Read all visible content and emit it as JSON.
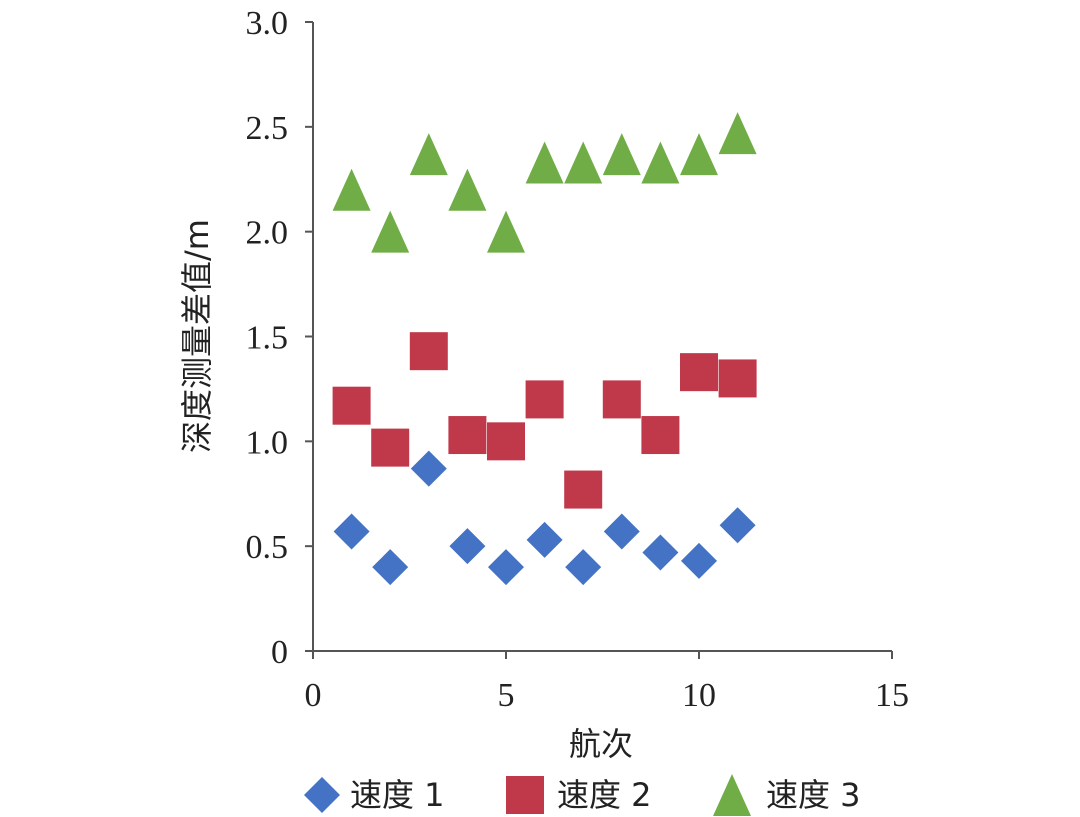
{
  "chart_data": {
    "type": "scatter",
    "title": "",
    "xlabel": "航次",
    "ylabel": "深度测量差值/m",
    "xlim": [
      0,
      15
    ],
    "ylim": [
      0,
      3.0
    ],
    "x_ticks": [
      "0",
      "5",
      "10",
      "15"
    ],
    "y_ticks": [
      "0",
      "0.5",
      "1.0",
      "1.5",
      "2.0",
      "2.5",
      "3.0"
    ],
    "grid": false,
    "legend_position": "bottom",
    "x": [
      1,
      2,
      3,
      4,
      5,
      6,
      7,
      8,
      9,
      10,
      11
    ],
    "series": [
      {
        "name": "速度 1",
        "marker": "diamond",
        "color": "#4472C4",
        "values": [
          0.57,
          0.4,
          0.87,
          0.5,
          0.4,
          0.53,
          0.4,
          0.57,
          0.47,
          0.43,
          0.6
        ]
      },
      {
        "name": "速度 2",
        "marker": "square",
        "color": "#C0394B",
        "values": [
          1.17,
          0.97,
          1.43,
          1.03,
          1.0,
          1.2,
          0.77,
          1.2,
          1.03,
          1.33,
          1.3
        ]
      },
      {
        "name": "速度 3",
        "marker": "triangle",
        "color": "#70AD47",
        "values": [
          2.2,
          2.0,
          2.37,
          2.2,
          2.0,
          2.33,
          2.33,
          2.37,
          2.33,
          2.37,
          2.47
        ]
      }
    ]
  }
}
